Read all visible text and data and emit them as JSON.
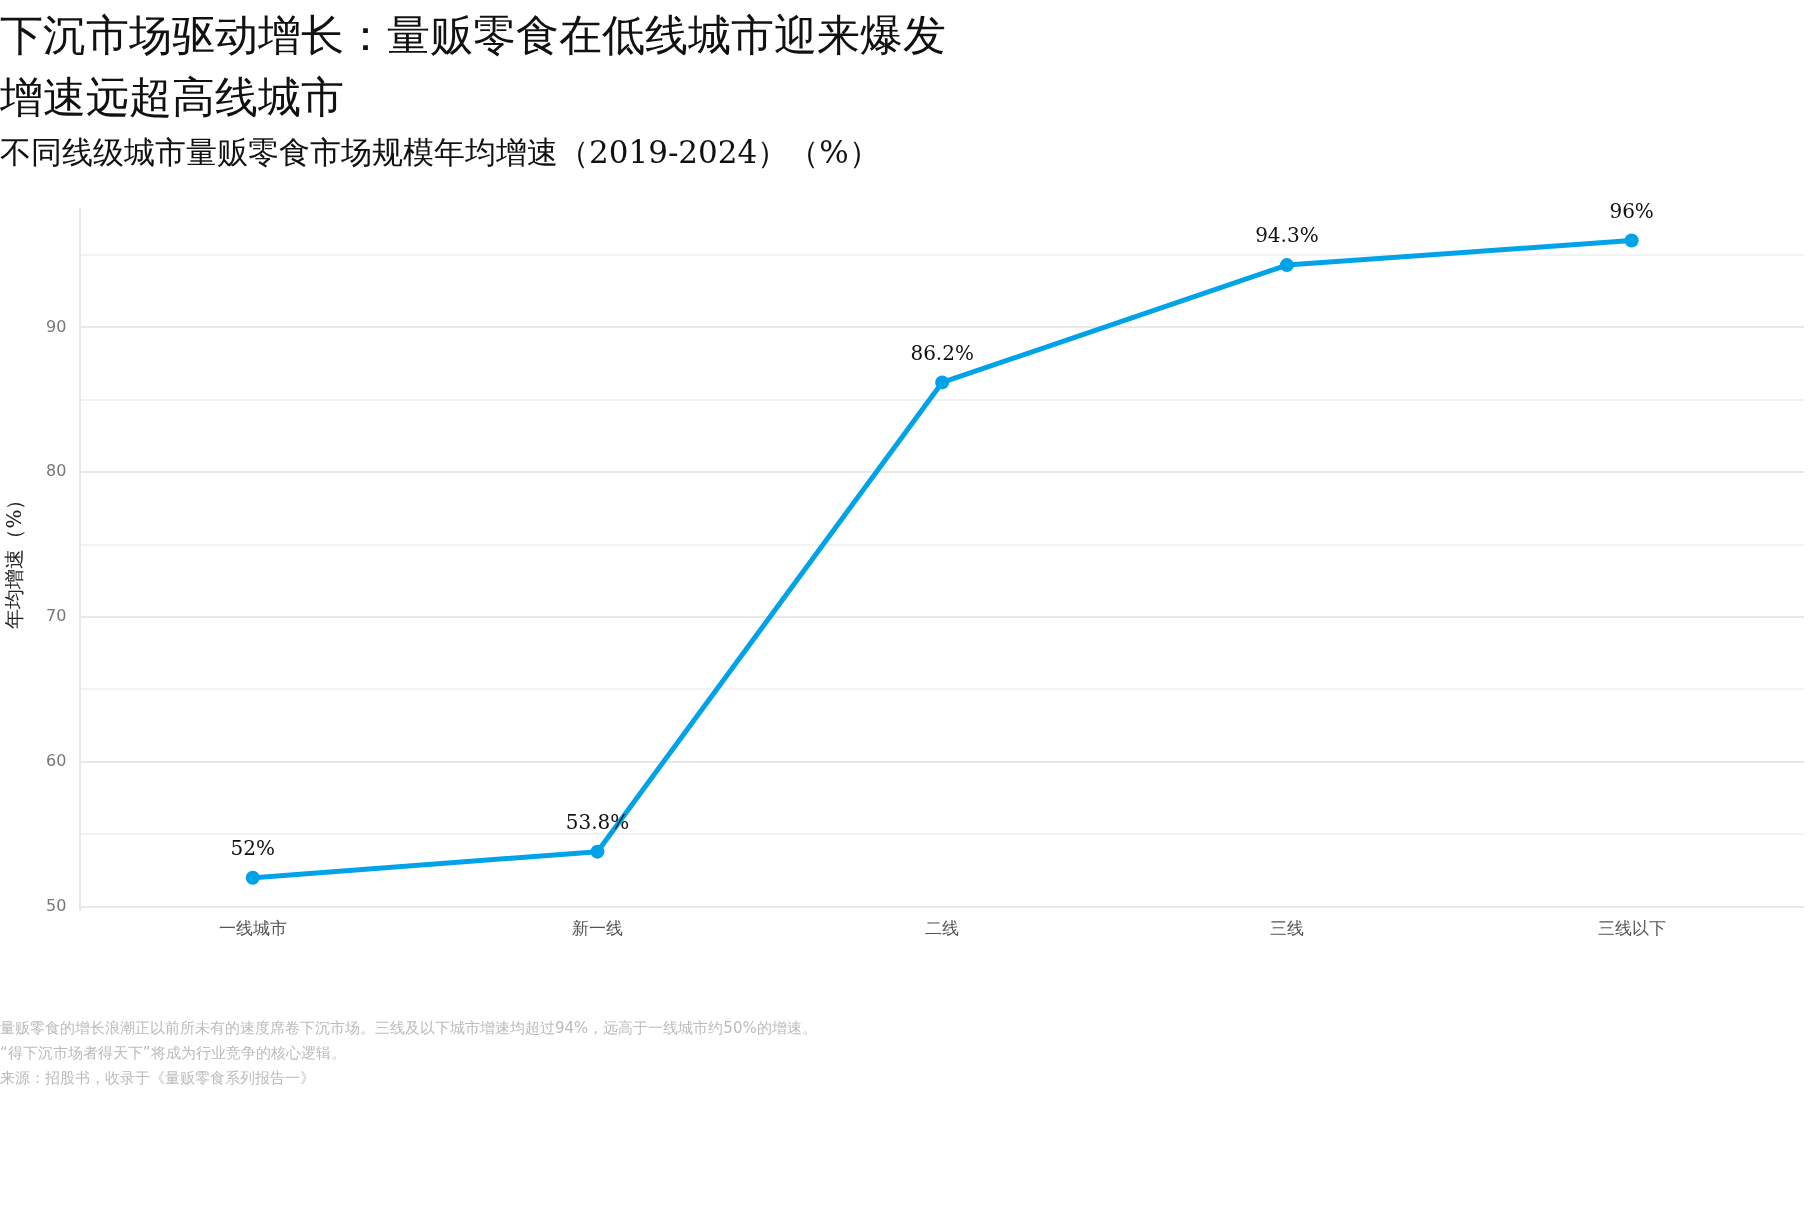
{
  "chart_data": {
    "type": "line",
    "title": "下沉市场驱动增长：量贩零食在低线城市迎来爆发增速远超高线城市",
    "subtitle": "不同线级城市量贩零食市场规模年均增速（2019-2024）（%）",
    "ylabel": "年均增速（%）",
    "categories": [
      "一线城市",
      "新一线",
      "二线",
      "三线",
      "三线以下"
    ],
    "series": [
      {
        "color": "#00a2e8",
        "values": [
          52,
          53.8,
          86.2,
          94.3,
          96
        ],
        "value_labels": [
          "52%",
          "53.8%",
          "86.2%",
          "94.3%",
          "96%"
        ]
      }
    ],
    "ylim": [
      49.8,
      98.2
    ],
    "yticks": [
      50,
      {
        "value": 55,
        "label": null
      },
      60,
      {
        "value": 65,
        "label": null
      },
      70,
      {
        "value": 75,
        "label": null
      },
      80,
      {
        "value": 85,
        "label": null
      },
      90,
      {
        "value": 95,
        "label": null
      }
    ],
    "grid": "y",
    "legend": false,
    "marker": "circle",
    "line_style": "solid",
    "annotations": [
      "量贩零食的增长浪潮正以前所未有的速度席卷下沉市场。三线及以下城市增速均超过94%，远高于一线城市约50%的增速。",
      "“得下沉市场者得天下”将成为行业竞争的核心逻辑。",
      "来源：招股书，收录于《量贩零食系列报告一》"
    ]
  }
}
